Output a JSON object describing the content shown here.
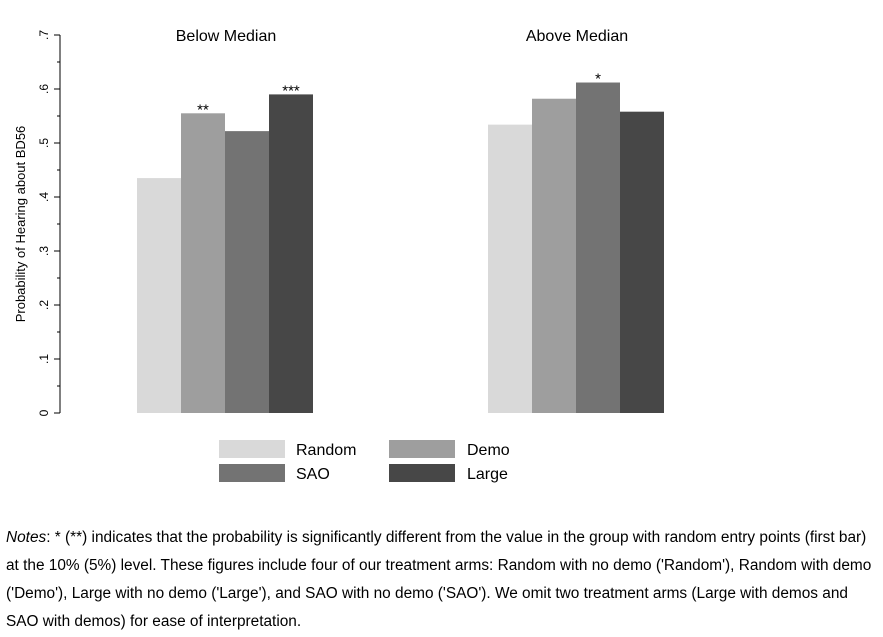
{
  "chart_data": {
    "type": "bar",
    "ylabel": "Probability of Hearing about BD56",
    "ylim": [
      0,
      0.7
    ],
    "yticks": [
      {
        "value": 0,
        "label": "0"
      },
      {
        "value": 0.1,
        "label": ".1"
      },
      {
        "value": 0.2,
        "label": ".2"
      },
      {
        "value": 0.3,
        "label": ".3"
      },
      {
        "value": 0.4,
        "label": ".4"
      },
      {
        "value": 0.5,
        "label": ".5"
      },
      {
        "value": 0.6,
        "label": ".6"
      },
      {
        "value": 0.7,
        "label": ".7"
      }
    ],
    "grid": false,
    "legend_position": "bottom",
    "panels": [
      {
        "title": "Below Median",
        "values": [
          0.435,
          0.555,
          0.522,
          0.59
        ],
        "significance": [
          "",
          "**",
          "",
          "***"
        ]
      },
      {
        "title": "Above Median",
        "values": [
          0.534,
          0.582,
          0.612,
          0.558
        ],
        "significance": [
          "",
          "",
          "*",
          ""
        ]
      }
    ],
    "series": [
      {
        "name": "Random",
        "color": "#d9d9d9"
      },
      {
        "name": "Demo",
        "color": "#9e9e9e"
      },
      {
        "name": "SAO",
        "color": "#737373"
      },
      {
        "name": "Large",
        "color": "#474747"
      }
    ]
  },
  "notes": {
    "label": "Notes",
    "text": ": * (**) indicates that the probability is significantly different from the value in the group with random entry points (first bar) at the 10% (5%) level. These figures include four of our treatment arms: Random with no demo ('Random'), Random with demo ('Demo'), Large with no demo ('Large'), and SAO with no demo ('SAO'). We omit two treatment arms (Large with demos and SAO with demos) for ease of interpretation."
  }
}
